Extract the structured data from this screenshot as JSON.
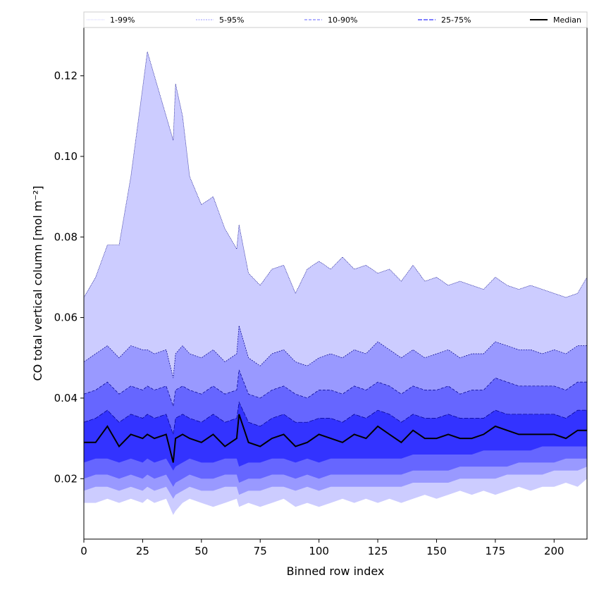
{
  "chart_data": {
    "type": "area",
    "xlabel": "Binned row index",
    "ylabel": "CO total vertical column [mol m⁻²]",
    "xlim": [
      0,
      214
    ],
    "ylim": [
      0.005,
      0.132
    ],
    "xticks": [
      0,
      25,
      50,
      75,
      100,
      125,
      150,
      175,
      200
    ],
    "yticks": [
      0.02,
      0.04,
      0.06,
      0.08,
      0.1,
      0.12
    ],
    "grid": false,
    "legend_position": "top",
    "legend": [
      "1-99%",
      "5-95%",
      "10-90%",
      "25-75%",
      "Median"
    ],
    "colors": {
      "band_1_99": "#ccccff",
      "band_5_95": "#9999ff",
      "band_10_90": "#6666ff",
      "band_25_75": "#3333ff",
      "median": "#000000",
      "band_edge": "#00008b"
    },
    "x": [
      0,
      5,
      10,
      15,
      20,
      25,
      27,
      30,
      35,
      38,
      39,
      42,
      45,
      50,
      55,
      60,
      65,
      66,
      70,
      75,
      80,
      85,
      90,
      95,
      100,
      105,
      110,
      115,
      120,
      125,
      130,
      135,
      140,
      145,
      150,
      155,
      160,
      165,
      170,
      175,
      180,
      185,
      190,
      195,
      200,
      205,
      210,
      214
    ],
    "series": [
      {
        "name": "1-99%",
        "lower": [
          0.014,
          0.014,
          0.015,
          0.014,
          0.015,
          0.014,
          0.015,
          0.014,
          0.015,
          0.011,
          0.012,
          0.014,
          0.015,
          0.014,
          0.013,
          0.014,
          0.015,
          0.013,
          0.014,
          0.013,
          0.014,
          0.015,
          0.013,
          0.014,
          0.013,
          0.014,
          0.015,
          0.014,
          0.015,
          0.014,
          0.015,
          0.014,
          0.015,
          0.016,
          0.015,
          0.016,
          0.017,
          0.016,
          0.017,
          0.016,
          0.017,
          0.018,
          0.017,
          0.018,
          0.018,
          0.019,
          0.018,
          0.02
        ],
        "upper": [
          0.065,
          0.07,
          0.078,
          0.078,
          0.095,
          0.117,
          0.126,
          0.12,
          0.11,
          0.104,
          0.118,
          0.11,
          0.095,
          0.088,
          0.09,
          0.082,
          0.077,
          0.083,
          0.071,
          0.068,
          0.072,
          0.073,
          0.066,
          0.072,
          0.074,
          0.072,
          0.075,
          0.072,
          0.073,
          0.071,
          0.072,
          0.069,
          0.073,
          0.069,
          0.07,
          0.068,
          0.069,
          0.068,
          0.067,
          0.07,
          0.068,
          0.067,
          0.068,
          0.067,
          0.066,
          0.065,
          0.066,
          0.07
        ]
      },
      {
        "name": "5-95%",
        "lower": [
          0.017,
          0.018,
          0.018,
          0.017,
          0.018,
          0.017,
          0.018,
          0.017,
          0.018,
          0.015,
          0.016,
          0.017,
          0.018,
          0.017,
          0.017,
          0.018,
          0.018,
          0.016,
          0.017,
          0.017,
          0.018,
          0.018,
          0.017,
          0.018,
          0.017,
          0.018,
          0.018,
          0.018,
          0.018,
          0.018,
          0.018,
          0.018,
          0.019,
          0.019,
          0.019,
          0.019,
          0.02,
          0.02,
          0.02,
          0.02,
          0.021,
          0.021,
          0.021,
          0.021,
          0.022,
          0.022,
          0.022,
          0.023
        ],
        "upper": [
          0.049,
          0.051,
          0.053,
          0.05,
          0.053,
          0.052,
          0.052,
          0.051,
          0.052,
          0.045,
          0.051,
          0.053,
          0.051,
          0.05,
          0.052,
          0.049,
          0.051,
          0.058,
          0.05,
          0.048,
          0.051,
          0.052,
          0.049,
          0.048,
          0.05,
          0.051,
          0.05,
          0.052,
          0.051,
          0.054,
          0.052,
          0.05,
          0.052,
          0.05,
          0.051,
          0.052,
          0.05,
          0.051,
          0.051,
          0.054,
          0.053,
          0.052,
          0.052,
          0.051,
          0.052,
          0.051,
          0.053,
          0.053
        ]
      },
      {
        "name": "10-90%",
        "lower": [
          0.02,
          0.021,
          0.021,
          0.02,
          0.021,
          0.02,
          0.021,
          0.02,
          0.021,
          0.018,
          0.019,
          0.02,
          0.021,
          0.02,
          0.02,
          0.021,
          0.021,
          0.019,
          0.02,
          0.02,
          0.021,
          0.021,
          0.02,
          0.021,
          0.02,
          0.021,
          0.021,
          0.021,
          0.021,
          0.021,
          0.021,
          0.021,
          0.022,
          0.022,
          0.022,
          0.022,
          0.023,
          0.023,
          0.023,
          0.023,
          0.023,
          0.024,
          0.024,
          0.024,
          0.024,
          0.025,
          0.025,
          0.025
        ],
        "upper": [
          0.041,
          0.042,
          0.044,
          0.041,
          0.043,
          0.042,
          0.043,
          0.042,
          0.043,
          0.038,
          0.042,
          0.043,
          0.042,
          0.041,
          0.043,
          0.041,
          0.042,
          0.047,
          0.041,
          0.04,
          0.042,
          0.043,
          0.041,
          0.04,
          0.042,
          0.042,
          0.041,
          0.043,
          0.042,
          0.044,
          0.043,
          0.041,
          0.043,
          0.042,
          0.042,
          0.043,
          0.041,
          0.042,
          0.042,
          0.045,
          0.044,
          0.043,
          0.043,
          0.043,
          0.043,
          0.042,
          0.044,
          0.044
        ]
      },
      {
        "name": "25-75%",
        "lower": [
          0.024,
          0.025,
          0.025,
          0.024,
          0.025,
          0.024,
          0.025,
          0.024,
          0.025,
          0.022,
          0.023,
          0.024,
          0.025,
          0.024,
          0.024,
          0.025,
          0.025,
          0.023,
          0.024,
          0.024,
          0.025,
          0.025,
          0.024,
          0.025,
          0.024,
          0.025,
          0.025,
          0.025,
          0.025,
          0.025,
          0.025,
          0.025,
          0.026,
          0.026,
          0.026,
          0.026,
          0.026,
          0.026,
          0.027,
          0.027,
          0.027,
          0.027,
          0.027,
          0.028,
          0.028,
          0.028,
          0.028,
          0.028
        ],
        "upper": [
          0.034,
          0.035,
          0.037,
          0.034,
          0.036,
          0.035,
          0.036,
          0.035,
          0.036,
          0.031,
          0.035,
          0.036,
          0.035,
          0.034,
          0.036,
          0.034,
          0.035,
          0.039,
          0.034,
          0.033,
          0.035,
          0.036,
          0.034,
          0.034,
          0.035,
          0.035,
          0.034,
          0.036,
          0.035,
          0.037,
          0.036,
          0.034,
          0.036,
          0.035,
          0.035,
          0.036,
          0.035,
          0.035,
          0.035,
          0.037,
          0.036,
          0.036,
          0.036,
          0.036,
          0.036,
          0.035,
          0.037,
          0.037
        ]
      },
      {
        "name": "Median",
        "values": [
          0.029,
          0.029,
          0.033,
          0.028,
          0.031,
          0.03,
          0.031,
          0.03,
          0.031,
          0.024,
          0.03,
          0.031,
          0.03,
          0.029,
          0.031,
          0.028,
          0.03,
          0.036,
          0.029,
          0.028,
          0.03,
          0.031,
          0.028,
          0.029,
          0.031,
          0.03,
          0.029,
          0.031,
          0.03,
          0.033,
          0.031,
          0.029,
          0.032,
          0.03,
          0.03,
          0.031,
          0.03,
          0.03,
          0.031,
          0.033,
          0.032,
          0.031,
          0.031,
          0.031,
          0.031,
          0.03,
          0.032,
          0.032
        ]
      }
    ]
  }
}
